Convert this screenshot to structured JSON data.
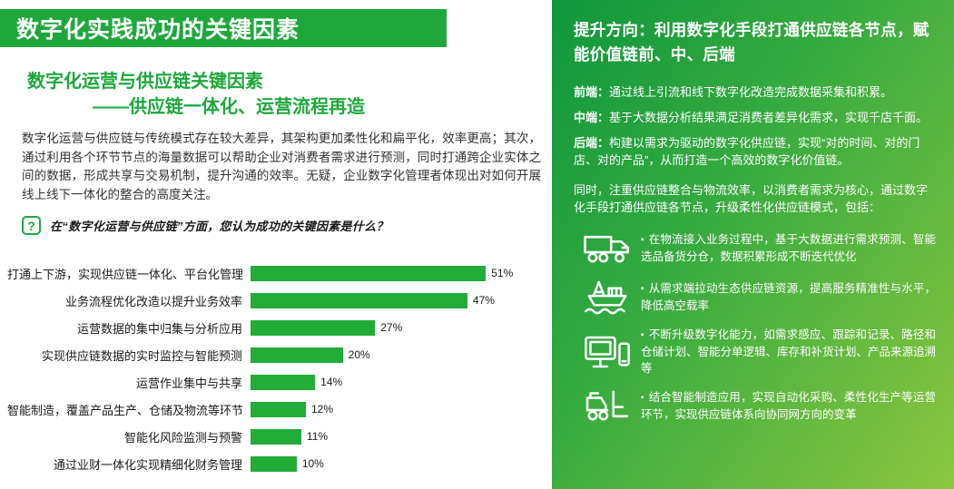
{
  "left": {
    "header_title": "数字化实践成功的关键因素",
    "subtitle_line1": "数字化运营与供应链关键因素",
    "subtitle_line2": "——供应链一体化、运营流程再造",
    "paragraph": "数字化运营与供应链与传统模式存在较大差异，其架构更加柔性化和扁平化，效率更高；其次，通过利用各个环节节点的海量数据可以帮助企业对消费者需求进行预测，同时打通跨企业实体之间的数据，形成共享与交易机制，提升沟通的效率。无疑，企业数字化管理者体现出对如何开展线上线下一体化的整合的高度关注。",
    "question_mark": "?",
    "question": "在“数字化运营与供应链”方面，您认为成功的关键因素是什么？"
  },
  "chart_data": {
    "type": "bar",
    "orientation": "horizontal",
    "title": "在“数字化运营与供应链”方面，您认为成功的关键因素是什么？",
    "categories": [
      "打通上下游，实现供应链一体化、平台化管理",
      "业务流程优化改造以提升业务效率",
      "运营数据的集中归集与分析应用",
      "实现供应链数据的实时监控与智能预测",
      "运营作业集中与共享",
      "智能制造，覆盖产品生产、仓储及物流等环节",
      "智能化风险监测与预警",
      "通过业财一体化实现精细化财务管理"
    ],
    "values": [
      51,
      47,
      27,
      20,
      14,
      12,
      11,
      10
    ],
    "value_labels": [
      "51%",
      "47%",
      "27%",
      "20%",
      "14%",
      "12%",
      "11%",
      "10%"
    ],
    "xlim": [
      0,
      60
    ],
    "grid": false,
    "bar_color": "#22ac38"
  },
  "right": {
    "title": "提升方向：利用数字化手段打通供应链各节点，赋能价值链前、中、后端",
    "stages": [
      {
        "label": "前端：",
        "text": "通过线上引流和线下数字化改造完成数据采集和积累。"
      },
      {
        "label": "中端：",
        "text": "基于大数据分析结果满足消费者差异化需求，实现千店千面。"
      },
      {
        "label": "后端：",
        "text": "构建以需求为驱动的数字化供应链，实现“对的时间、对的门店、对的产品”，从而打造一个高效的数字化价值链。"
      }
    ],
    "paragraph": "同时，注重供应链整合与物流效率，以消费者需求为核心，通过数字化手段打通供应链各节点，升级柔性化供应链模式，包括：",
    "bullet_marker": "▪",
    "bullets": [
      {
        "icon": "truck-icon",
        "text": "在物流接入业务过程中，基于大数据进行需求预测、智能选品备货分仓，数据积累形成不断迭代优化"
      },
      {
        "icon": "ship-platform-icon",
        "text": "从需求端拉动生态供应链资源，提高服务精准性与水平，降低高空载率"
      },
      {
        "icon": "computer-phone-icon",
        "text": "不断升级数字化能力，如需求感应、跟踪和记录、路径和仓储计划、智能分单逻辑、库存和补货计划、产品来源追溯等"
      },
      {
        "icon": "forklift-icon",
        "text": "结合智能制造应用，实现自动化采购、柔性化生产等运营环节，实现供应链体系向协同网方向的变革"
      }
    ],
    "colors": {
      "gradient_start": "#0e973c",
      "gradient_end": "#8cc63f"
    }
  },
  "colors": {
    "primary_green": "#1ea83c",
    "bar_green": "#22ac38",
    "text_dark": "#333333"
  }
}
